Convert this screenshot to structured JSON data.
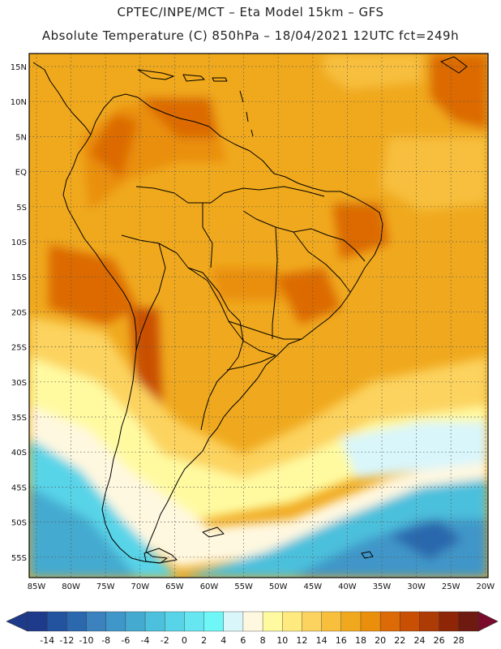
{
  "header": {
    "line1": "CPTEC/INPE/MCT –  Eta Model 15km – GFS",
    "line2": "Absolute Temperature (C) 850hPa – 18/04/2021 12UTC fct=249h"
  },
  "axes": {
    "lat_labels": [
      "15N",
      "10N",
      "5N",
      "EQ",
      "5S",
      "10S",
      "15S",
      "20S",
      "25S",
      "30S",
      "35S",
      "40S",
      "45S",
      "50S",
      "55S"
    ],
    "lon_labels": [
      "85W",
      "80W",
      "75W",
      "70W",
      "65W",
      "60W",
      "55W",
      "50W",
      "45W",
      "40W",
      "35W",
      "30W",
      "25W",
      "20W"
    ]
  },
  "colorbar": {
    "values": [
      "-14",
      "-12",
      "-10",
      "-8",
      "-6",
      "-4",
      "-2",
      "0",
      "2",
      "4",
      "6",
      "8",
      "10",
      "12",
      "14",
      "16",
      "18",
      "20",
      "22",
      "24",
      "26",
      "28"
    ],
    "colors": [
      "#1e3a8a",
      "#23529e",
      "#2c68ad",
      "#3b82bf",
      "#3f96c8",
      "#44aad0",
      "#4cc0dc",
      "#58d4e8",
      "#66e6f0",
      "#6ff7f8",
      "#d9f6fb",
      "#fff8e0",
      "#fffaa0",
      "#ffea80",
      "#fcd35e",
      "#f7bf3c",
      "#f0a91e",
      "#e98f0c",
      "#dc6a06",
      "#c94f05",
      "#ad3b06",
      "#8e2506",
      "#6e1a10"
    ]
  }
}
